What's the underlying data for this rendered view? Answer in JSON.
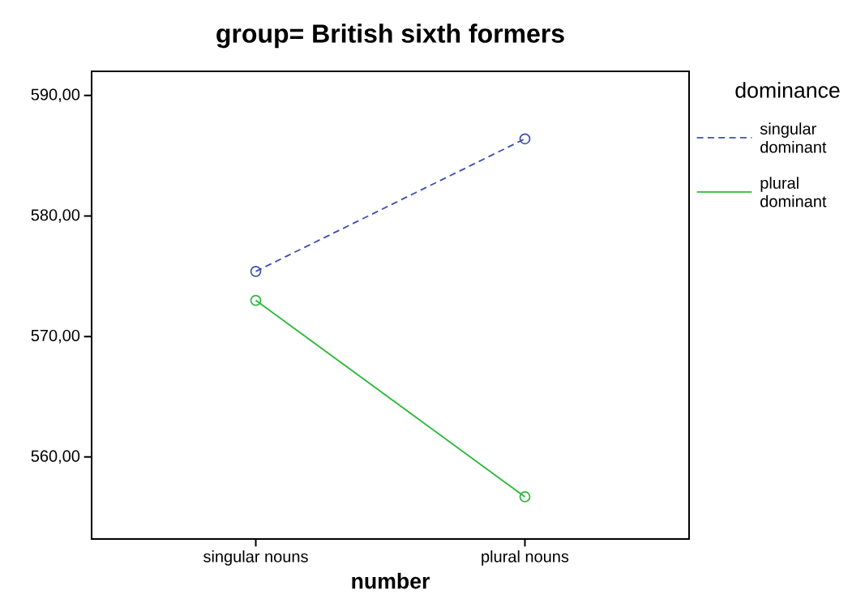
{
  "chart_data": {
    "type": "line",
    "title": "group= British sixth formers",
    "xlabel": "number",
    "legend_title": "dominance",
    "categories": [
      "singular nouns",
      "plural nouns"
    ],
    "series": [
      {
        "name": "singular dominant",
        "color": "#3f51b0",
        "values": [
          575.4,
          586.4
        ],
        "line_style": "dashed"
      },
      {
        "name": "plural dominant",
        "color": "#2cb83a",
        "values": [
          573.0,
          556.7
        ],
        "line_style": "solid"
      }
    ],
    "ylim": [
      553.2,
      592
    ],
    "yticks": [
      {
        "value": 560,
        "label": "560,00"
      },
      {
        "value": 570,
        "label": "570,00"
      },
      {
        "value": 580,
        "label": "580,00"
      },
      {
        "value": 590,
        "label": "590,00"
      }
    ],
    "grid": false,
    "legend": "top right",
    "marker": "circle"
  }
}
